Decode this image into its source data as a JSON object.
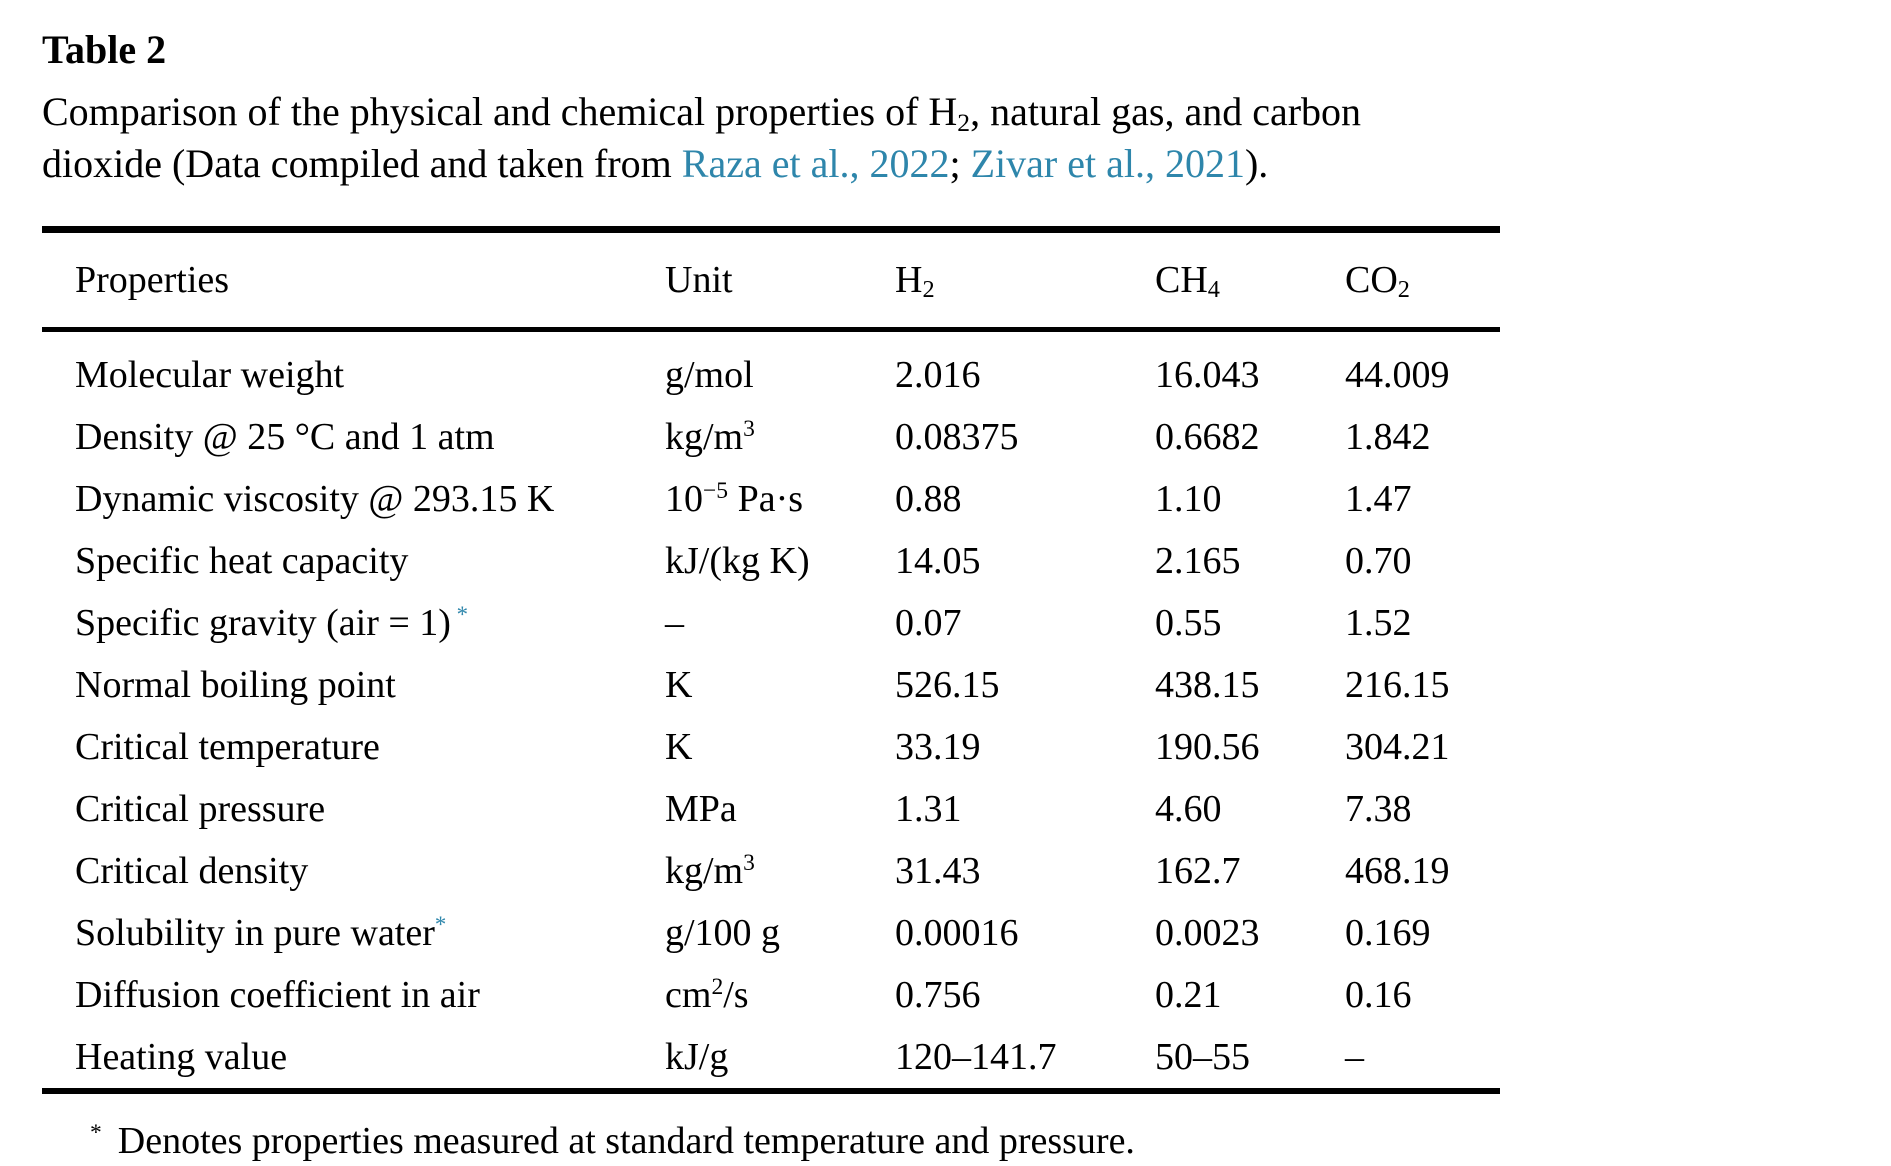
{
  "colors": {
    "background": "#ffffff",
    "text": "#000000",
    "rule": "#000000",
    "citation_link": "#2e86ab",
    "asterisk": "#2e86ab"
  },
  "caption": {
    "label": "Table 2",
    "line": [
      {
        "t": "Comparison of the physical and chemical properties of H"
      },
      {
        "sub": "2"
      },
      {
        "t": ", natural gas, and carbon"
      },
      {
        "br": true
      },
      {
        "t": "dioxide (Data compiled and taken from "
      },
      {
        "link": "Raza et al., 2022"
      },
      {
        "t": "; "
      },
      {
        "link": "Zivar et al., 2021"
      },
      {
        "t": ")."
      }
    ]
  },
  "table": {
    "header_keys": [
      "properties",
      "unit",
      "h2",
      "ch4",
      "co2"
    ],
    "headers": [
      "Properties",
      "Unit",
      [
        {
          "t": "H"
        },
        {
          "sub": "2"
        }
      ],
      [
        {
          "t": "CH"
        },
        {
          "sub": "4"
        }
      ],
      [
        {
          "t": "CO"
        },
        {
          "sub": "2"
        }
      ]
    ],
    "rows": [
      [
        "Molecular weight",
        "g/mol",
        "2.016",
        "16.043",
        "44.009"
      ],
      [
        "Density @ 25 °C and 1 atm",
        [
          {
            "t": "kg/m"
          },
          {
            "sup": "3"
          }
        ],
        "0.08375",
        "0.6682",
        "1.842"
      ],
      [
        "Dynamic viscosity @ 293.15 K",
        [
          {
            "t": "10"
          },
          {
            "sup": "−5"
          },
          {
            "t": " Pa·s"
          }
        ],
        "0.88",
        "1.10",
        "1.47"
      ],
      [
        "Specific heat capacity",
        "kJ/(kg K)",
        "14.05",
        "2.165",
        "0.70"
      ],
      [
        [
          {
            "t": "Specific gravity (air = 1)"
          },
          {
            "star": " *"
          }
        ],
        "–",
        "0.07",
        "0.55",
        "1.52"
      ],
      [
        "Normal boiling point",
        "K",
        "526.15",
        "438.15",
        "216.15"
      ],
      [
        "Critical temperature",
        "K",
        "33.19",
        "190.56",
        "304.21"
      ],
      [
        "Critical pressure",
        "MPa",
        "1.31",
        "4.60",
        "7.38"
      ],
      [
        "Critical density",
        [
          {
            "t": "kg/m"
          },
          {
            "sup": "3"
          }
        ],
        "31.43",
        "162.7",
        "468.19"
      ],
      [
        [
          {
            "t": "Solubility in pure water"
          },
          {
            "star": "*"
          }
        ],
        "g/100 g",
        "0.00016",
        "0.0023",
        "0.169"
      ],
      [
        "Diffusion coefficient in air",
        [
          {
            "t": "cm"
          },
          {
            "sup": "2"
          },
          {
            "t": "/s"
          }
        ],
        "0.756",
        "0.21",
        "0.16"
      ],
      [
        "Heating value",
        "kJ/g",
        "120–141.7",
        "50–55",
        "–"
      ]
    ]
  },
  "footnote": {
    "marker": "*",
    "text": "Denotes properties measured at standard temperature and pressure."
  }
}
